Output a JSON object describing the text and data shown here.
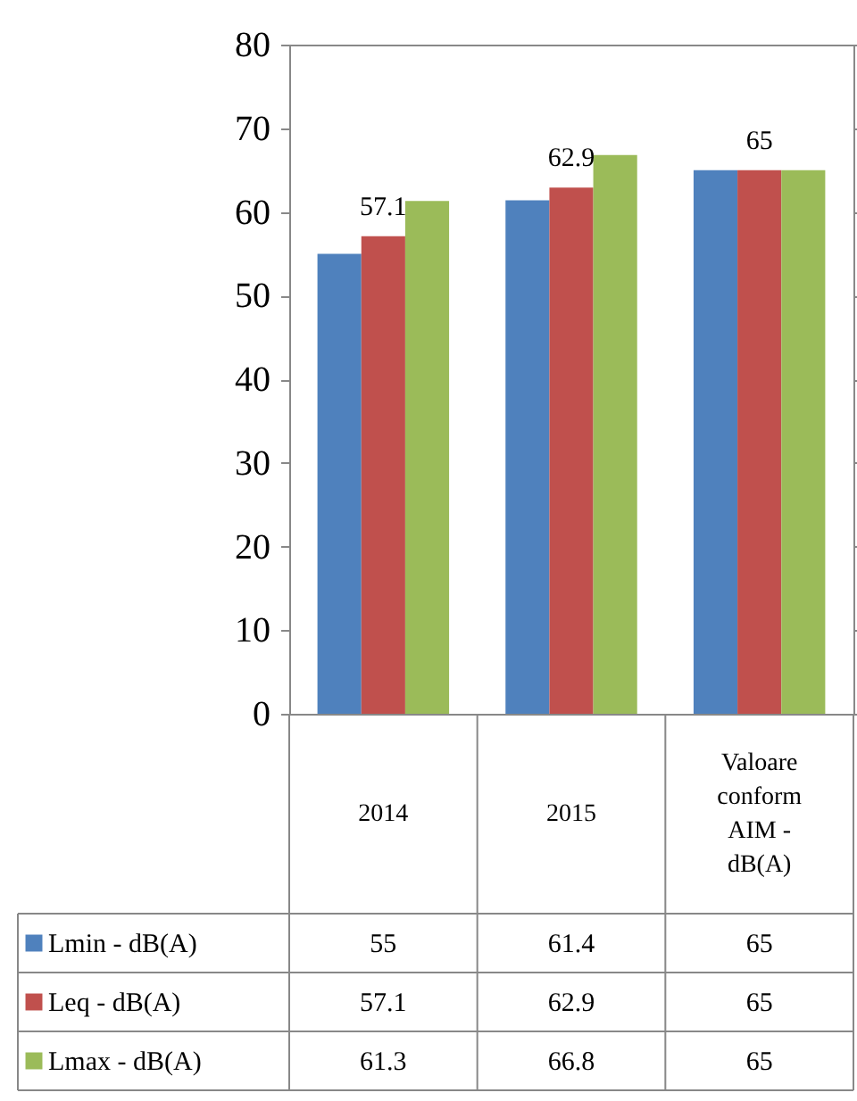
{
  "chart_data": {
    "type": "bar",
    "categories": [
      "2014",
      "2015",
      "Valoare conform AIM - dB(A)"
    ],
    "series": [
      {
        "name": "Lmin - dB(A)",
        "color": "#4f81bd",
        "values": [
          55,
          61.4,
          65
        ]
      },
      {
        "name": "Leq - dB(A)",
        "color": "#c0504d",
        "values": [
          57.1,
          62.9,
          65
        ]
      },
      {
        "name": "Lmax - dB(A)",
        "color": "#9bbb59",
        "values": [
          61.3,
          66.8,
          65
        ]
      }
    ],
    "annotations": [
      {
        "text": "57.1",
        "x": "2014",
        "y": 57.1
      },
      {
        "text": "62.9",
        "x": "2015",
        "y": 62.9
      },
      {
        "text": "65",
        "x": "Valoare conform AIM - dB(A)",
        "y": 65
      }
    ],
    "ylim": [
      0,
      80
    ],
    "yticks": [
      0,
      10,
      20,
      30,
      40,
      50,
      60,
      70,
      80
    ],
    "grid": false,
    "legend": "bottom",
    "data_labels": true
  }
}
